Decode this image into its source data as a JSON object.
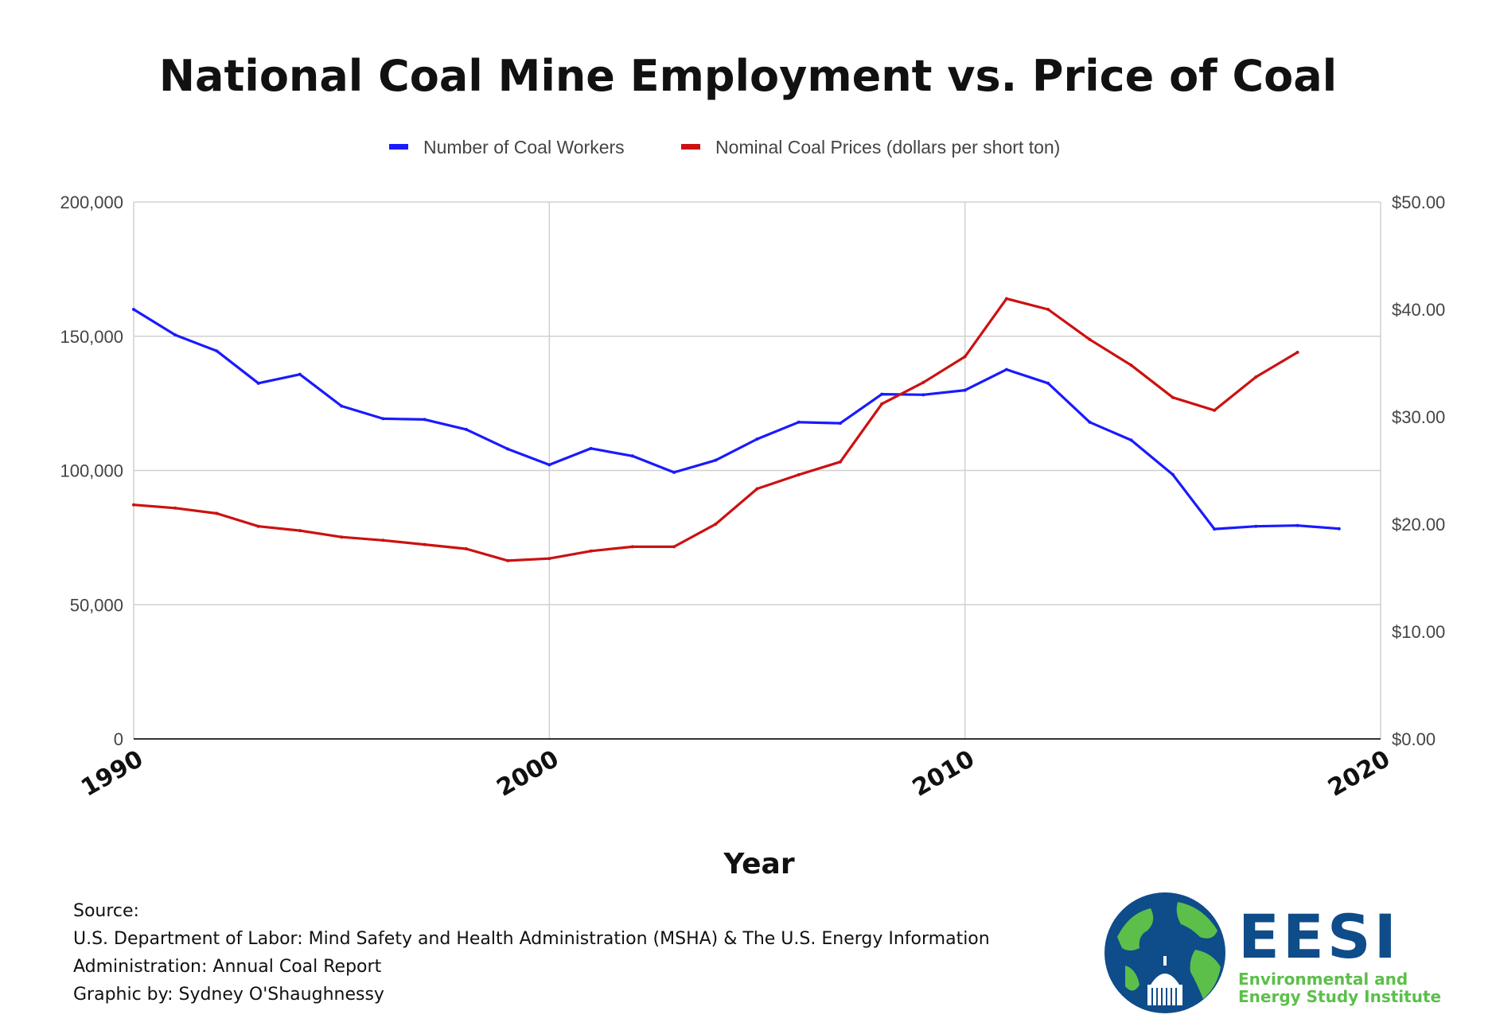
{
  "chart_data": {
    "type": "line",
    "title": "National Coal Mine Employment vs. Price of Coal",
    "xlabel": "Year",
    "xlim": [
      1990,
      2020
    ],
    "x_ticks": [
      "1990",
      "2000",
      "2010",
      "2020"
    ],
    "y_left": {
      "range": [
        0,
        200000
      ],
      "ticks": [
        "0",
        "50,000",
        "100,000",
        "150,000",
        "200,000"
      ]
    },
    "y_right": {
      "range": [
        0,
        50
      ],
      "ticks": [
        "$0.00",
        "$10.00",
        "$20.00",
        "$30.00",
        "$40.00",
        "$50.00"
      ]
    },
    "grid": true,
    "legend_position": "top",
    "series": [
      {
        "name": "Number of Coal Workers",
        "axis": "left",
        "color": "#1a1aff",
        "x": [
          1990,
          1991,
          1992,
          1993,
          1994,
          1995,
          1996,
          1997,
          1998,
          1999,
          2000,
          2001,
          2002,
          2003,
          2004,
          2005,
          2006,
          2007,
          2008,
          2009,
          2010,
          2011,
          2012,
          2013,
          2014,
          2015,
          2016,
          2017,
          2018,
          2019
        ],
        "values": [
          160000,
          150500,
          144500,
          132500,
          135800,
          124000,
          119300,
          119000,
          115300,
          108000,
          102100,
          108200,
          105400,
          99300,
          103800,
          111700,
          118000,
          117600,
          128400,
          128200,
          129900,
          137600,
          132500,
          118000,
          111300,
          98500,
          78200,
          79200,
          79500,
          78300
        ]
      },
      {
        "name": "Nominal Coal Prices (dollars per short ton)",
        "axis": "right",
        "color": "#cc1111",
        "x": [
          1990,
          1991,
          1992,
          1993,
          1994,
          1995,
          1996,
          1997,
          1998,
          1999,
          2000,
          2001,
          2002,
          2003,
          2004,
          2005,
          2006,
          2007,
          2008,
          2009,
          2010,
          2011,
          2012,
          2013,
          2014,
          2015,
          2016,
          2017,
          2018
        ],
        "values": [
          21.8,
          21.5,
          21.0,
          19.8,
          19.4,
          18.8,
          18.5,
          18.1,
          17.7,
          16.6,
          16.8,
          17.5,
          17.9,
          17.9,
          20.0,
          23.3,
          24.6,
          25.8,
          31.2,
          33.2,
          35.6,
          41.0,
          40.0,
          37.2,
          34.8,
          31.8,
          30.6,
          33.7,
          36.0
        ]
      }
    ]
  },
  "source": {
    "heading": "Source:",
    "line1": "U.S. Department of Labor: Mind Safety and Health Administration (MSHA) & The U.S. Energy Information",
    "line2": "Administration: Annual Coal Report",
    "credit": "Graphic by: Sydney O'Shaughnessy"
  },
  "logo": {
    "name": "EESI",
    "subtitle_line1": "Environmental and",
    "subtitle_line2": "Energy Study Institute",
    "colors": {
      "blue": "#0f4c8a",
      "green": "#5cbf4a"
    }
  }
}
